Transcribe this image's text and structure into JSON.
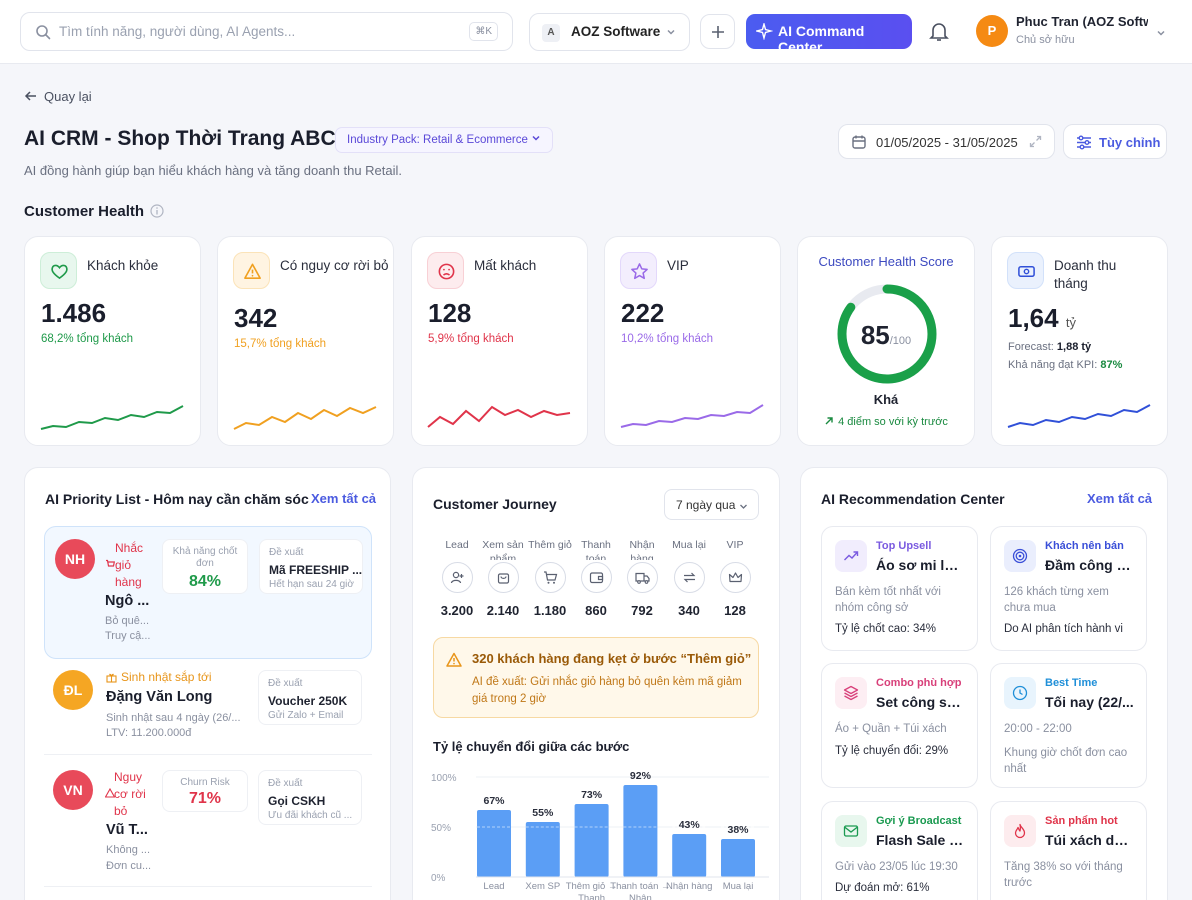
{
  "topbar": {
    "search_placeholder": "Tìm tính năng, người dùng, AI Agents...",
    "search_shortcut": "⌘K",
    "org_badge": "A",
    "org_name": "AOZ Software",
    "ai_button": "AI Command Center",
    "user_initial": "P",
    "user_name": "Phuc Tran (AOZ Software)",
    "user_role": "Chủ sở hữu",
    "accent": "#4b5cf0"
  },
  "header": {
    "back": "Quay lại",
    "title": "AI CRM - Shop Thời Trang ABC",
    "industry_pack": "Industry Pack: Retail & Ecommerce",
    "subtitle": "AI đồng hành giúp bạn hiểu khách hàng và tăng doanh thu Retail.",
    "date_range": "01/05/2025 - 31/05/2025",
    "customize": "Tùy chỉnh"
  },
  "health": {
    "section_title": "Customer Health",
    "cards": [
      {
        "label": "Khách khỏe",
        "value": "1.486",
        "sub": "68,2% tổng khách",
        "color": "#1f9a4a",
        "icon": "heart-icon"
      },
      {
        "label": "Có nguy cơ rời bỏ",
        "value": "342",
        "sub": "15,7% tổng khách",
        "color": "#f0a020",
        "icon": "warning-icon"
      },
      {
        "label": "Mất khách",
        "value": "128",
        "sub": "5,9% tổng khách",
        "color": "#e0344a",
        "icon": "sad-face-icon"
      },
      {
        "label": "VIP",
        "value": "222",
        "sub": "10,2% tổng khách",
        "color": "#9a6ae8",
        "icon": "star-icon"
      }
    ],
    "score": {
      "title": "Customer Health Score",
      "value": "85",
      "max": "/100",
      "score_fraction": 0.85,
      "label": "Khá",
      "delta": "4 điểm so với kỳ trước",
      "color": "#1aa049"
    },
    "revenue": {
      "label": "Doanh thu tháng",
      "value": "1,64",
      "unit": "tỷ",
      "forecast_label": "Forecast:",
      "forecast": "1,88 tỷ",
      "kpi_label": "Khả năng đạt KPI:",
      "kpi": "87%",
      "color": "#3050d8",
      "icon": "money-icon"
    }
  },
  "priority": {
    "title": "AI Priority List - Hôm nay cần chăm sóc",
    "link": "Xem tất cả",
    "items": [
      {
        "initials": "NH",
        "tag": "Nhắc giỏ hàng",
        "tag_color": "#e0344a",
        "name": "Ngô ...",
        "desc1": "Bỏ quê...",
        "desc2": "Truy cậ...",
        "metric_label": "Khả năng chốt đơn",
        "metric": "84%",
        "metric_color": "#1f9a4a",
        "suggest_label": "Đề xuất",
        "suggest": "Mã FREESHIP ...",
        "suggest_sub": "Hết hạn sau 24 giờ",
        "avatar_color": "#e84a5a"
      },
      {
        "initials": "ĐL",
        "tag": "Sinh nhật sắp tới",
        "tag_color": "#e8951a",
        "name": "Đặng Văn Long",
        "desc1": "Sinh nhật sau 4 ngày (26/...",
        "desc2": "LTV: 11.200.000đ",
        "suggest_label": "Đề xuất",
        "suggest": "Voucher 250K",
        "suggest_sub": "Gửi Zalo + Email",
        "avatar_color": "#f5a623"
      },
      {
        "initials": "VN",
        "tag": "Nguy cơ rời bỏ",
        "tag_color": "#e0344a",
        "name": "Vũ T...",
        "desc1": "Không ...",
        "desc2": "Đơn cu...",
        "metric_label": "Churn Risk",
        "metric": "71%",
        "metric_color": "#e0344a",
        "suggest_label": "Đề xuất",
        "suggest": "Gọi CSKH",
        "suggest_sub": "Ưu đãi khách cũ ...",
        "avatar_color": "#e84a5a"
      }
    ]
  },
  "journey": {
    "title": "Customer Journey",
    "period": "7 ngày qua",
    "stages": [
      {
        "label": "Lead",
        "value": "3.200",
        "icon": "user-plus-icon"
      },
      {
        "label": "Xem sản phẩm",
        "value": "2.140",
        "icon": "bag-icon"
      },
      {
        "label": "Thêm giỏ",
        "value": "1.180",
        "icon": "cart-icon"
      },
      {
        "label": "Thanh toán",
        "value": "860",
        "icon": "wallet-icon"
      },
      {
        "label": "Nhận hàng",
        "value": "792",
        "icon": "truck-icon"
      },
      {
        "label": "Mua lại",
        "value": "340",
        "icon": "repeat-icon"
      },
      {
        "label": "VIP",
        "value": "128",
        "icon": "crown-icon"
      }
    ],
    "alert_title": "320 khách hàng đang kẹt ở bước “Thêm giỏ”",
    "alert_body": "AI đề xuất: Gửi nhắc giỏ hàng bỏ quên kèm mã giảm giá trong 2 giờ",
    "conversion_title": "Tỷ lệ chuyển đổi giữa các bước"
  },
  "chart_data": {
    "type": "bar",
    "title": "Tỷ lệ chuyển đổi giữa các bước",
    "categories": [
      "Lead → Xem SP",
      "Xem SP → Thêm giỏ",
      "Thêm giỏ → Thanh toán",
      "Thanh toán → Nhận hàng",
      "Nhận hàng → Mua lại",
      "Mua lại → VIP"
    ],
    "tick_labels": [
      "Lead",
      "Xem SP",
      "Thêm giỏ → Thanh",
      "Thanh toán → Nhận",
      "Nhận hàng",
      "Mua lại"
    ],
    "values": [
      67,
      55,
      73,
      92,
      43,
      38
    ],
    "data_labels": [
      "67%",
      "55%",
      "73%",
      "92%",
      "43%",
      "38%"
    ],
    "yticks": [
      "100%",
      "50%",
      "0%"
    ],
    "ylim": [
      0,
      100
    ],
    "color": "#5b9ef5"
  },
  "recommend": {
    "title": "AI Recommendation Center",
    "link": "Xem tất cả",
    "cards": [
      {
        "category": "Top Upsell",
        "title": "Áo sơ mi lụa ...",
        "desc": "Bán kèm tốt nhất với nhóm công sở",
        "foot": "Tỷ lệ chốt cao: 34%",
        "color": "#7a5ae0",
        "bg": "#f1edfd",
        "icon": "trend-up-icon"
      },
      {
        "category": "Khách nên bán",
        "title": "Đầm công s...",
        "desc": "126 khách từng xem chưa mua",
        "foot": "Do AI phân tích hành vi",
        "color": "#3a4fd8",
        "bg": "#eaeefd",
        "icon": "target-icon"
      },
      {
        "category": "Combo phù hợp",
        "title": "Set công sở ...",
        "desc": "Áo + Quần + Túi xách",
        "foot": "Tỷ lệ chuyển đổi: 29%",
        "color": "#d8407a",
        "bg": "#fdeef3",
        "icon": "layers-icon"
      },
      {
        "category": "Best Time",
        "title": "Tối nay (22/...",
        "desc": "20:00 - 22:00",
        "desc2": "Khung giờ chốt đơn cao nhất",
        "color": "#1f8fd8",
        "bg": "#e8f4fd",
        "icon": "clock-icon"
      },
      {
        "category": "Gợi ý Broadcast",
        "title": "Flash Sale gi...",
        "desc": "Gửi vào 23/05 lúc 19:30",
        "foot": "Dự đoán mở: 61%",
        "color": "#1a9a50",
        "bg": "#e8f7ee",
        "icon": "mail-icon"
      },
      {
        "category": "Sản phẩm hot",
        "title": "Túi xách da t...",
        "desc": "Tăng 38% so với tháng trước",
        "color": "#e0344a",
        "bg": "#fdecee",
        "icon": "flame-icon"
      }
    ]
  }
}
